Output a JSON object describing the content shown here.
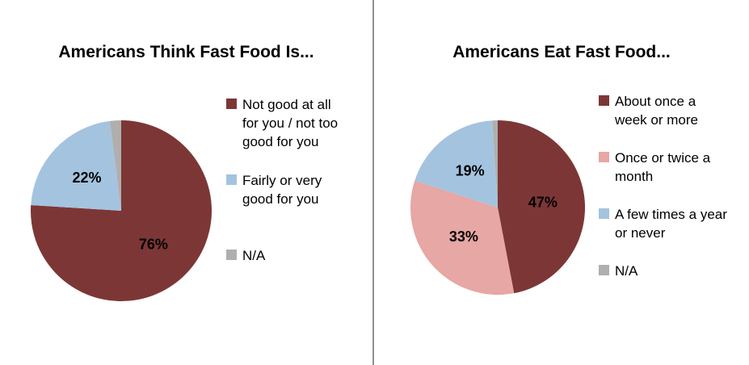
{
  "background_color": "#FFFFFF",
  "divider_color": "#8F8F8F",
  "chart_data": [
    {
      "type": "pie",
      "title": "Americans Think Fast Food Is...",
      "start_angle_deg": 0,
      "direction": "clockwise",
      "legend_position": "right",
      "slices": [
        {
          "label": "Not good at all for you / not too good for you",
          "label_lines": [
            "Not good at all",
            "for you / not too",
            "good for you"
          ],
          "value": 76,
          "pct_label": "76%",
          "color": "#7D3636"
        },
        {
          "label": "Fairly or very good for you",
          "label_lines": [
            "Fairly or very",
            "good for you"
          ],
          "value": 22,
          "pct_label": "22%",
          "color": "#A4C3DF"
        },
        {
          "label": "N/A",
          "label_lines": [
            "N/A"
          ],
          "value": 2,
          "pct_label": "",
          "color": "#B0AFAD"
        }
      ]
    },
    {
      "type": "pie",
      "title": "Americans Eat Fast Food...",
      "start_angle_deg": 0,
      "direction": "clockwise",
      "legend_position": "right",
      "slices": [
        {
          "label": "About once a week or more",
          "label_lines": [
            "About once a",
            "week or more"
          ],
          "value": 47,
          "pct_label": "47%",
          "color": "#7D3636"
        },
        {
          "label": "Once or twice a month",
          "label_lines": [
            "Once or twice a",
            "month"
          ],
          "value": 33,
          "pct_label": "33%",
          "color": "#E6A7A5"
        },
        {
          "label": "A few times a year or never",
          "label_lines": [
            "A few times a year",
            "or never"
          ],
          "value": 19,
          "pct_label": "19%",
          "color": "#A4C3DF"
        },
        {
          "label": "N/A",
          "label_lines": [
            "N/A"
          ],
          "value": 1,
          "pct_label": "",
          "color": "#B0AFAD"
        }
      ]
    }
  ]
}
